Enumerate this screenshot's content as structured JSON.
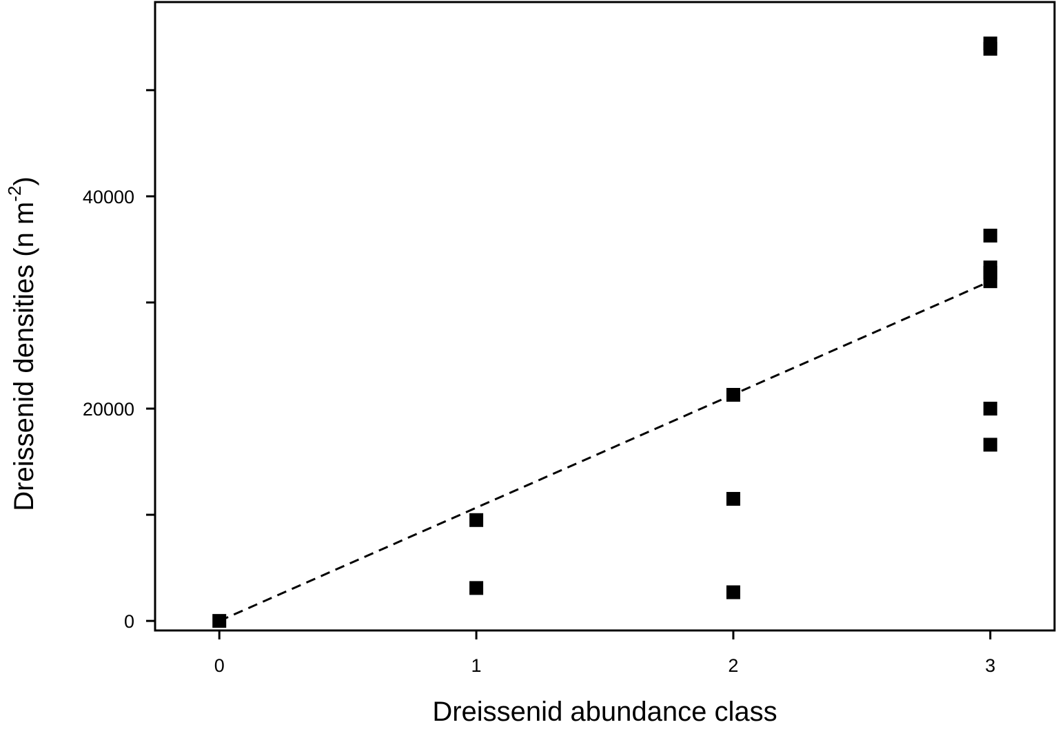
{
  "chart_data": {
    "type": "scatter",
    "xlabel": "Dreissenid abundance class",
    "ylabel": {
      "text": "Dreissenid densities (n m",
      "superscript": "-2",
      "close": ")"
    },
    "xlim": [
      -0.25,
      3.25
    ],
    "ylim": [
      -900,
      58300
    ],
    "x_ticks": [
      0,
      1,
      2,
      3
    ],
    "x_tick_labels": [
      "0",
      "1",
      "2",
      "3"
    ],
    "y_ticks": [
      0,
      10000,
      20000,
      30000,
      40000,
      50000
    ],
    "y_tick_labels": [
      "0",
      "",
      "20000",
      "",
      "40000",
      ""
    ],
    "series": [
      {
        "marker": "square",
        "color": "#000000",
        "points": [
          {
            "x": 0,
            "y": 0
          },
          {
            "x": 1,
            "y": 3100
          },
          {
            "x": 1,
            "y": 9500
          },
          {
            "x": 2,
            "y": 2700
          },
          {
            "x": 2,
            "y": 11500
          },
          {
            "x": 2,
            "y": 21300
          },
          {
            "x": 3,
            "y": 16600
          },
          {
            "x": 3,
            "y": 20000
          },
          {
            "x": 3,
            "y": 32000
          },
          {
            "x": 3,
            "y": 32800
          },
          {
            "x": 3,
            "y": 33300
          },
          {
            "x": 3,
            "y": 36300
          },
          {
            "x": 3,
            "y": 53900
          },
          {
            "x": 3,
            "y": 54400
          }
        ]
      }
    ],
    "trendline": {
      "style": "dashed",
      "color": "#000000",
      "x": [
        0,
        3
      ],
      "y": [
        0,
        32000
      ]
    },
    "grid": false,
    "legend": "none"
  }
}
